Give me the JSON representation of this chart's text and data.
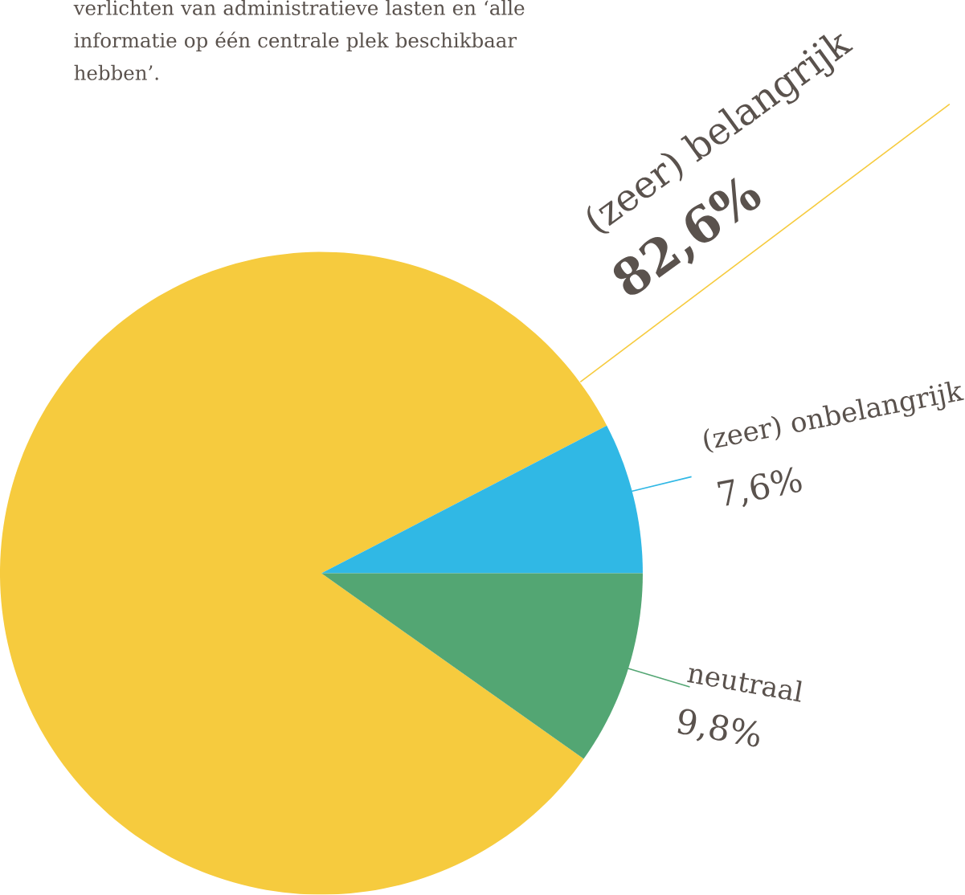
{
  "chart_data": {
    "type": "pie",
    "categories": [
      "(zeer) belangrijk",
      "(zeer) onbelangrijk",
      "neutraal"
    ],
    "values": [
      82.6,
      7.6,
      9.8
    ],
    "colors": [
      "#f6cb3e",
      "#30b8e5",
      "#53a673"
    ],
    "value_labels": [
      "82,6%",
      "7,6%",
      "9,8%"
    ],
    "annotations": [
      "verlichten van administratieve lasten en ‘alle informatie op één centrale plek beschikbaar hebben’."
    ]
  }
}
